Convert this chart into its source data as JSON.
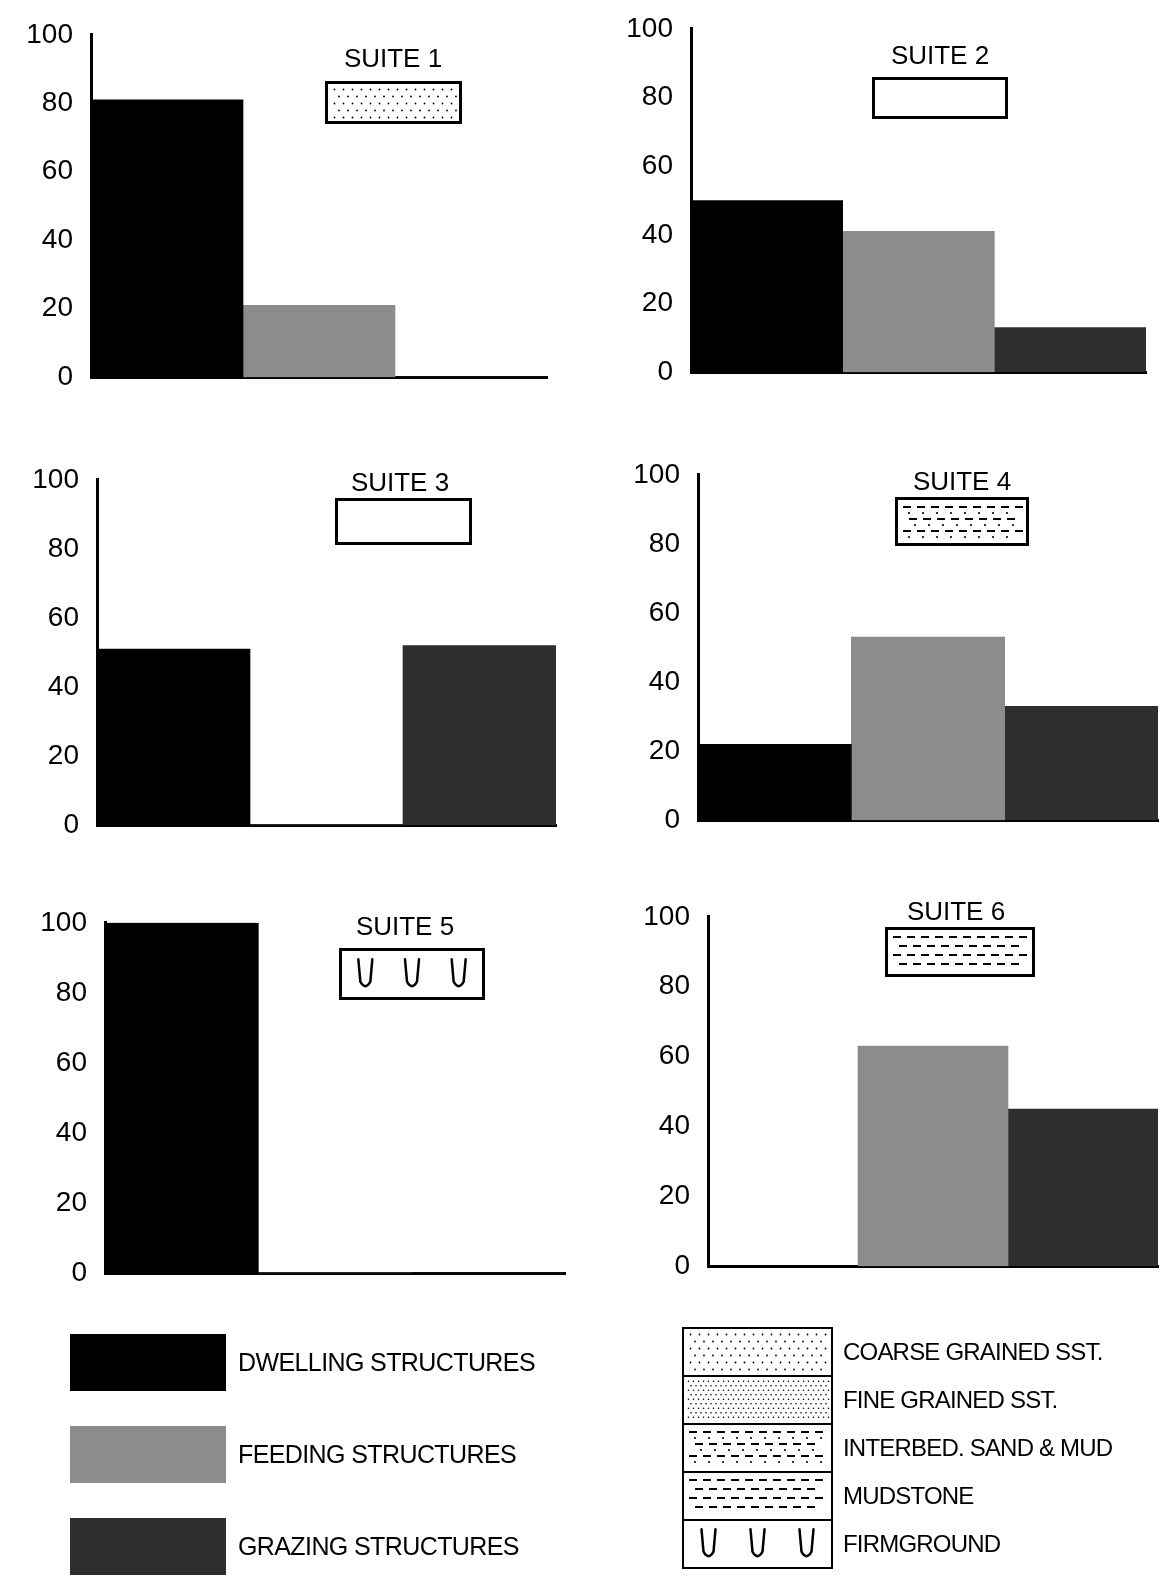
{
  "chart_data": [
    {
      "type": "bar",
      "title": "SUITE 1",
      "categories": [
        null
      ],
      "series": [
        {
          "color": "#000000",
          "values": [
            81
          ]
        },
        {
          "color": "#8c8c8c",
          "values": [
            21
          ]
        },
        {
          "color": "#2e2e2e",
          "values": [
            0
          ]
        }
      ],
      "ylim": [
        0,
        100
      ],
      "yticks": [
        0,
        20,
        40,
        60,
        80,
        100
      ]
    },
    {
      "type": "bar",
      "title": "SUITE 2",
      "categories": [
        null
      ],
      "series": [
        {
          "color": "#000000",
          "values": [
            50
          ]
        },
        {
          "color": "#8c8c8c",
          "values": [
            41
          ]
        },
        {
          "color": "#2e2e2e",
          "values": [
            13
          ]
        }
      ],
      "ylim": [
        0,
        100
      ],
      "yticks": [
        0,
        20,
        40,
        60,
        80,
        100
      ]
    },
    {
      "type": "bar",
      "title": "SUITE 3",
      "categories": [
        null
      ],
      "series": [
        {
          "color": "#000000",
          "values": [
            51
          ]
        },
        {
          "color": "#8c8c8c",
          "values": [
            0
          ]
        },
        {
          "color": "#2e2e2e",
          "values": [
            52
          ]
        }
      ],
      "ylim": [
        0,
        100
      ],
      "yticks": [
        0,
        20,
        40,
        60,
        80,
        100
      ]
    },
    {
      "type": "bar",
      "title": "SUITE 4",
      "categories": [
        null
      ],
      "series": [
        {
          "color": "#000000",
          "values": [
            22
          ]
        },
        {
          "color": "#8c8c8c",
          "values": [
            53
          ]
        },
        {
          "color": "#2e2e2e",
          "values": [
            33
          ]
        }
      ],
      "ylim": [
        0,
        100
      ],
      "yticks": [
        0,
        20,
        40,
        60,
        80,
        100
      ]
    },
    {
      "type": "bar",
      "title": "SUITE 5",
      "categories": [
        null
      ],
      "series": [
        {
          "color": "#000000",
          "values": [
            100
          ]
        },
        {
          "color": "#8c8c8c",
          "values": [
            0
          ]
        },
        {
          "color": "#2e2e2e",
          "values": [
            0
          ]
        }
      ],
      "ylim": [
        0,
        100
      ],
      "yticks": [
        0,
        20,
        40,
        60,
        80,
        100
      ]
    },
    {
      "type": "bar",
      "title": "SUITE 6",
      "categories": [
        null
      ],
      "series": [
        {
          "color": "#000000",
          "values": [
            0
          ]
        },
        {
          "color": "#8c8c8c",
          "values": [
            63
          ]
        },
        {
          "color": "#2e2e2e",
          "values": [
            45
          ]
        }
      ],
      "ylim": [
        0,
        100
      ],
      "yticks": [
        0,
        20,
        40,
        60,
        80,
        100
      ]
    },
    {
      "type": "other",
      "annotations": [
        "DWELLING STRUCTURES",
        "FEEDING STRUCTURES",
        "GRAZING STRUCTURES"
      ]
    },
    {
      "type": "other",
      "annotations": [
        "COARSE GRAINED SST.",
        "FINE GRAINED SST.",
        "INTERBED. SAND & MUD",
        "MUDSTONE",
        "FIRMGROUND"
      ]
    }
  ]
}
